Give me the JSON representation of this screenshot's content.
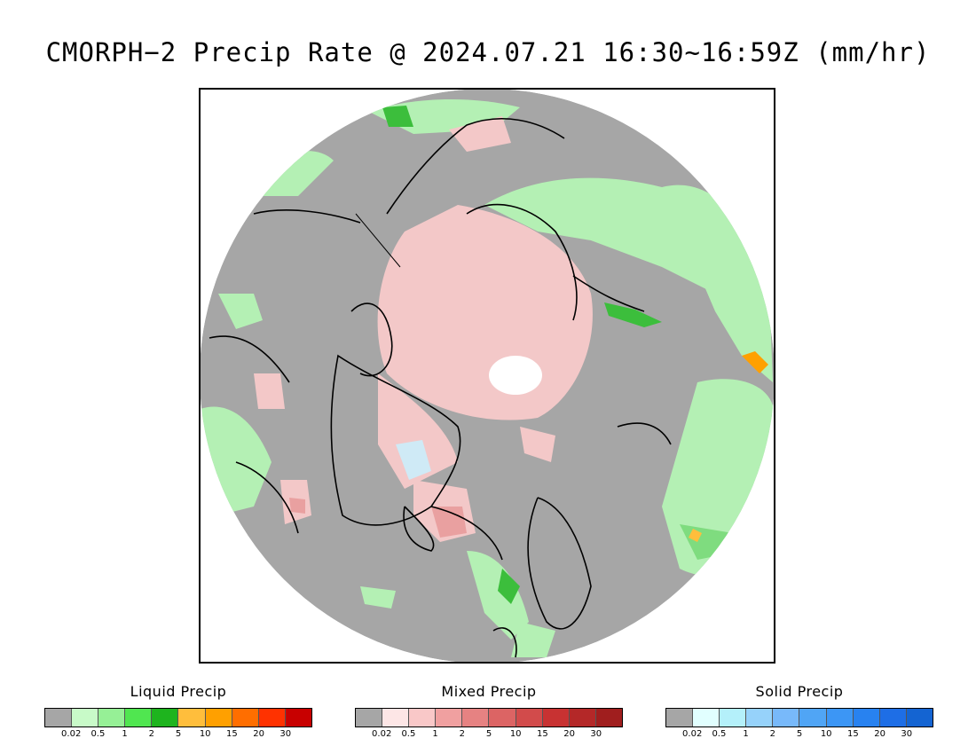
{
  "title": "CMORPH−2 Precip Rate @ 2024.07.21 16:30~16:59Z (mm/hr)",
  "map": {
    "projection": "north-polar-stereographic",
    "colors": {
      "no_precip": "#a6a6a6",
      "liquid_light": "#b4f0b4",
      "liquid_mid": "#7fdc7f",
      "liquid_heavy": "#3cbe3c",
      "mixed_light": "#f3c8c8",
      "mixed_mid": "#e9a0a0",
      "solid_light": "#cfeaf6",
      "coastline": "#000000",
      "outside": "#ffffff"
    }
  },
  "legends": [
    {
      "title": "Liquid Precip",
      "colors": [
        "#a6a6a6",
        "#c8fac8",
        "#96f096",
        "#50e650",
        "#1eb41e",
        "#ffbe3c",
        "#ffa000",
        "#ff6e00",
        "#ff3200",
        "#c80000"
      ],
      "ticks": [
        "0.02",
        "0.5",
        "1",
        "2",
        "5",
        "10",
        "15",
        "20",
        "30"
      ]
    },
    {
      "title": "Mixed Precip",
      "colors": [
        "#a6a6a6",
        "#fde6e6",
        "#f9c8c8",
        "#f0a0a0",
        "#e68282",
        "#dc6464",
        "#d24b4b",
        "#c83232",
        "#b42828",
        "#a01e1e"
      ],
      "ticks": [
        "0.02",
        "0.5",
        "1",
        "2",
        "5",
        "10",
        "15",
        "20",
        "30"
      ]
    },
    {
      "title": "Solid Precip",
      "colors": [
        "#a6a6a6",
        "#e1ffff",
        "#b4f0fa",
        "#96d2fa",
        "#78b9fa",
        "#50a5f5",
        "#3c96f5",
        "#2882f0",
        "#1e6ee6",
        "#1464d2"
      ],
      "ticks": [
        "0.02",
        "0.5",
        "1",
        "2",
        "5",
        "10",
        "15",
        "20",
        "30"
      ]
    }
  ]
}
